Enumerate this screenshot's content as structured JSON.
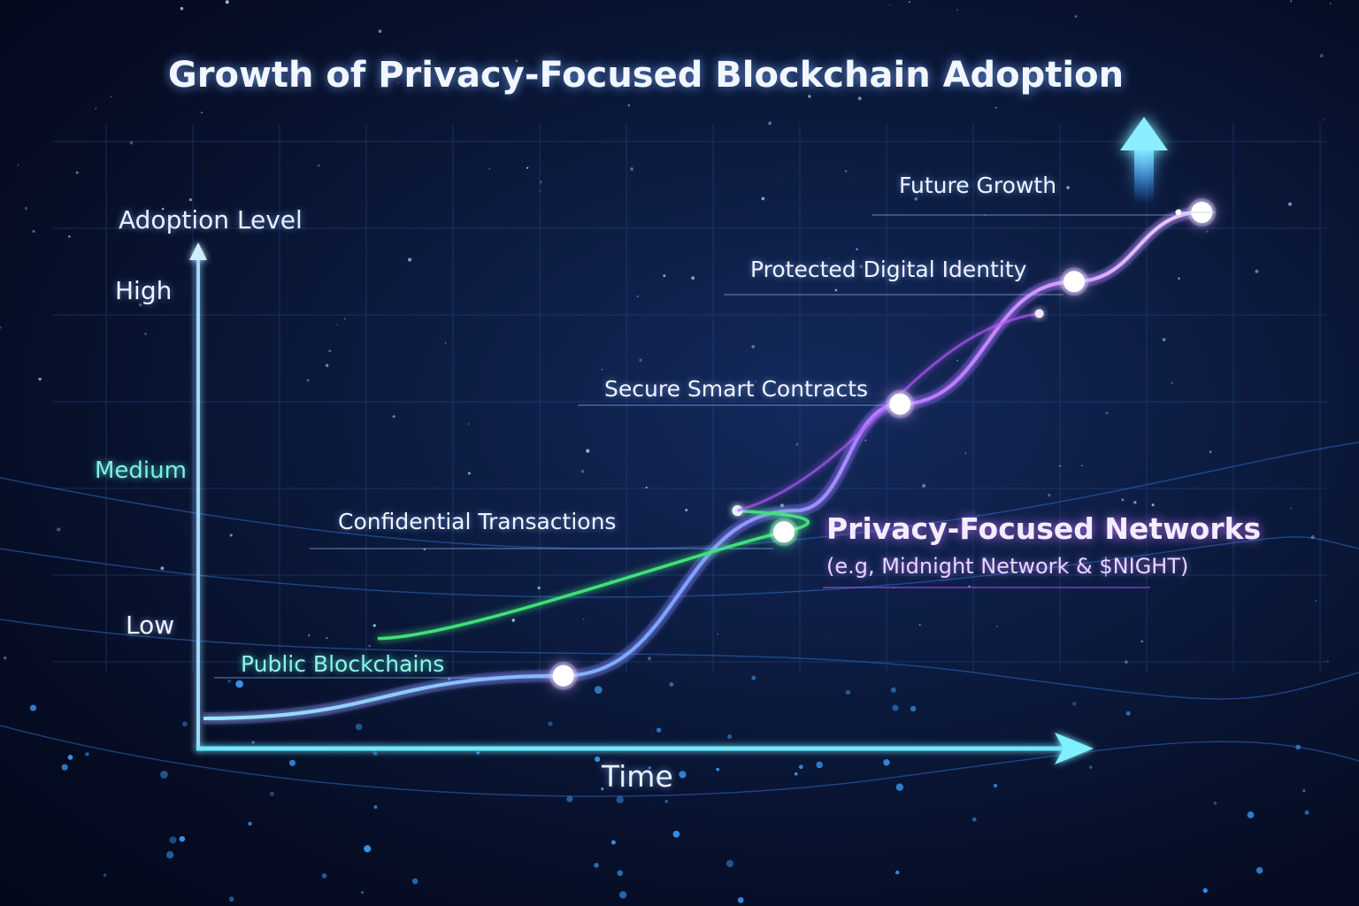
{
  "title": "Growth of Privacy-Focused Blockchain Adoption",
  "y_axis": {
    "label": "Adoption Level",
    "ticks": [
      "High",
      "Medium",
      "Low"
    ]
  },
  "x_axis": {
    "label": "Time"
  },
  "series_label": {
    "name": "Privacy-Focused Networks",
    "example": "(e.g, Midnight Network & $NIGHT)"
  },
  "milestones": [
    {
      "label": "Public Blockchains"
    },
    {
      "label": "Confidential Transactions"
    },
    {
      "label": "Secure Smart Contracts"
    },
    {
      "label": "Protected Digital Identity"
    },
    {
      "label": "Future Growth"
    }
  ],
  "colors": {
    "accent_blue": "#5ad2ff",
    "accent_green": "#3fe07a",
    "accent_purple": "#b65cff"
  },
  "chart_data": {
    "type": "line",
    "title": "Growth of Privacy-Focused Blockchain Adoption",
    "xlabel": "Time",
    "ylabel": "Adoption Level",
    "y_ticks": [
      "Low",
      "Medium",
      "High"
    ],
    "ylim": [
      0,
      1
    ],
    "xlim": [
      0,
      1
    ],
    "series": [
      {
        "name": "Privacy-Focused Networks",
        "points": [
          [
            0.0,
            0.03
          ],
          [
            0.31,
            0.11
          ],
          [
            0.51,
            0.42
          ],
          [
            0.6,
            0.62
          ],
          [
            0.75,
            0.85
          ],
          [
            0.86,
            0.98
          ]
        ]
      }
    ],
    "milestones": [
      {
        "label": "Public Blockchains",
        "x": 0.31,
        "y": 0.11
      },
      {
        "label": "Confidential Transactions",
        "x": 0.5,
        "y": 0.38
      },
      {
        "label": "Secure Smart Contracts",
        "x": 0.6,
        "y": 0.62
      },
      {
        "label": "Protected Digital Identity",
        "x": 0.75,
        "y": 0.85
      },
      {
        "label": "Future Growth",
        "x": 0.86,
        "y": 0.98
      }
    ],
    "grid": true,
    "legend": "none"
  }
}
